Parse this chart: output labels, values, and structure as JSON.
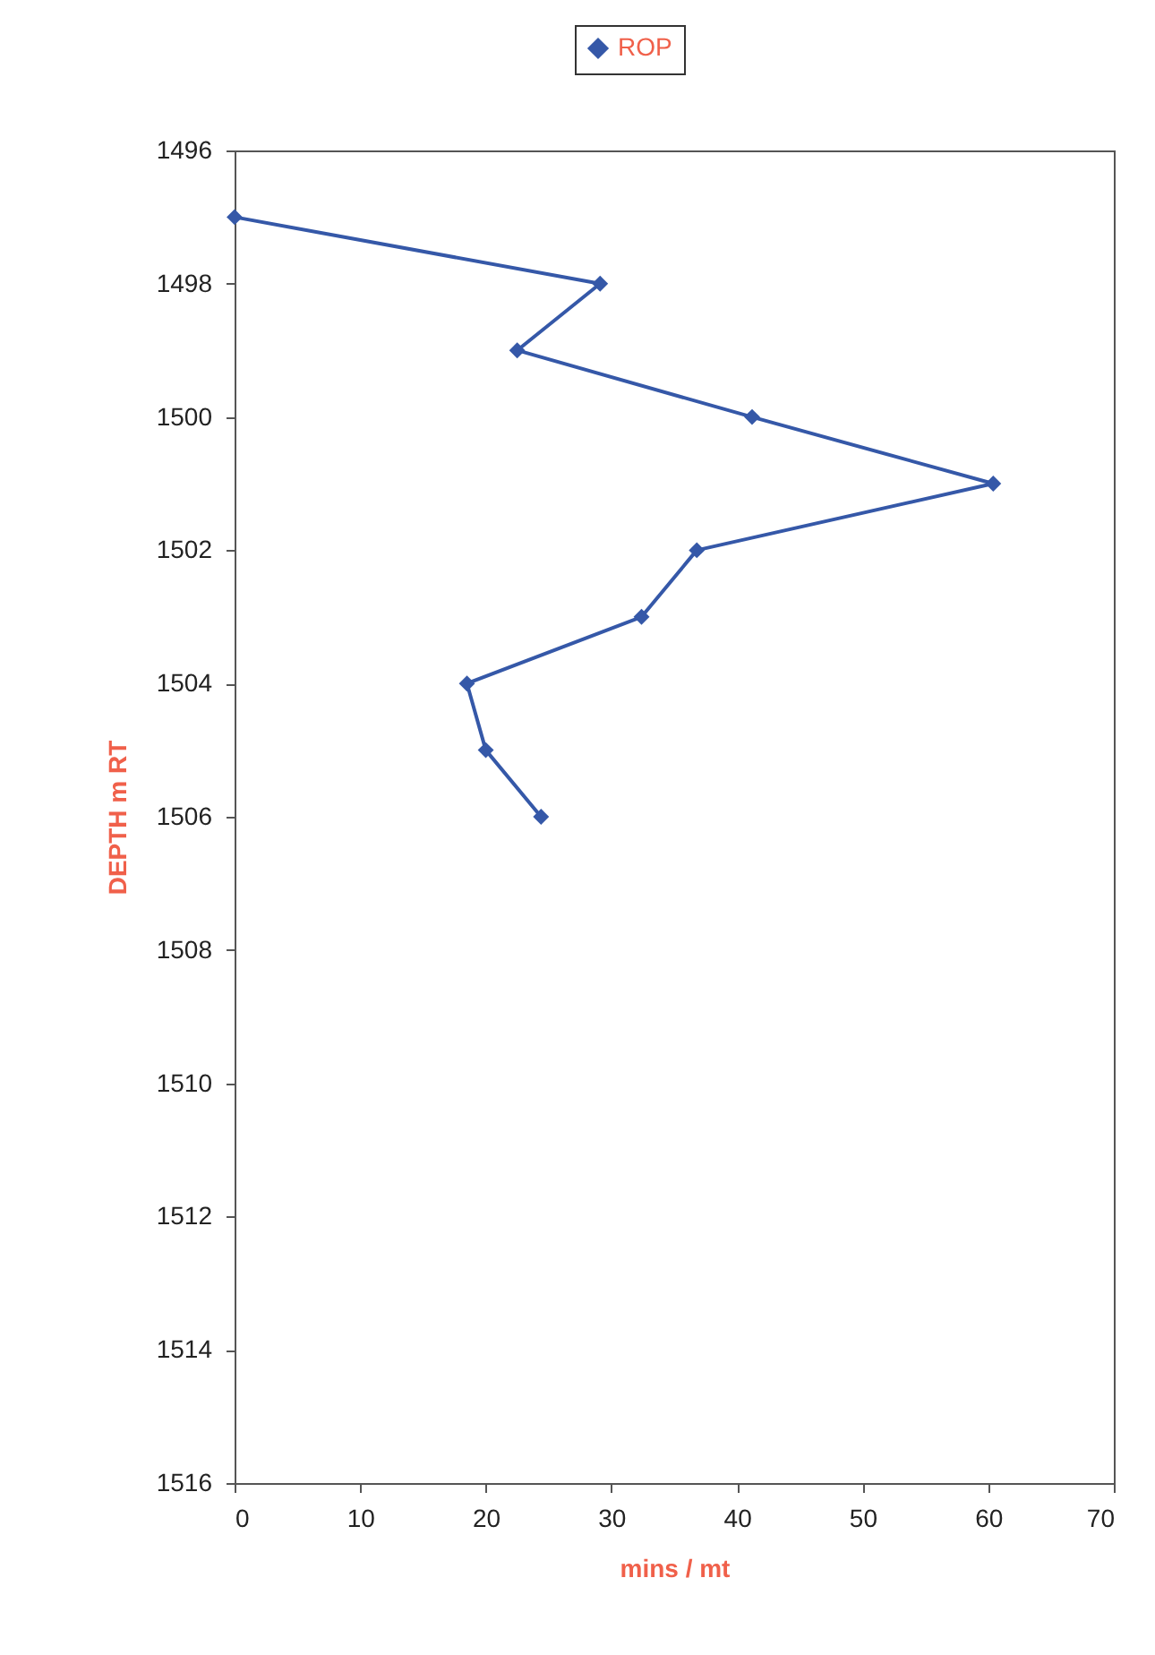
{
  "chart_data": {
    "type": "line",
    "xlabel": "mins / mt",
    "ylabel": "DEPTH m RT",
    "x": [
      0,
      29.1,
      22.5,
      41.2,
      60.4,
      36.8,
      32.4,
      18.5,
      20.0,
      24.4
    ],
    "series": [
      {
        "name": "ROP",
        "color": "#3558a8",
        "values": [
          1497,
          1498,
          1499,
          1500,
          1501,
          1502,
          1503,
          1504,
          1505,
          1506
        ]
      }
    ],
    "xlim": [
      0,
      70
    ],
    "xticks": [
      0,
      10,
      20,
      30,
      40,
      50,
      60,
      70
    ],
    "ylim": [
      1516,
      1496
    ],
    "yticks": [
      1496,
      1498,
      1500,
      1502,
      1504,
      1506,
      1508,
      1510,
      1512,
      1514,
      1516
    ],
    "grid": false,
    "legend": "top",
    "marker": "diamond",
    "line_style": "solid"
  }
}
